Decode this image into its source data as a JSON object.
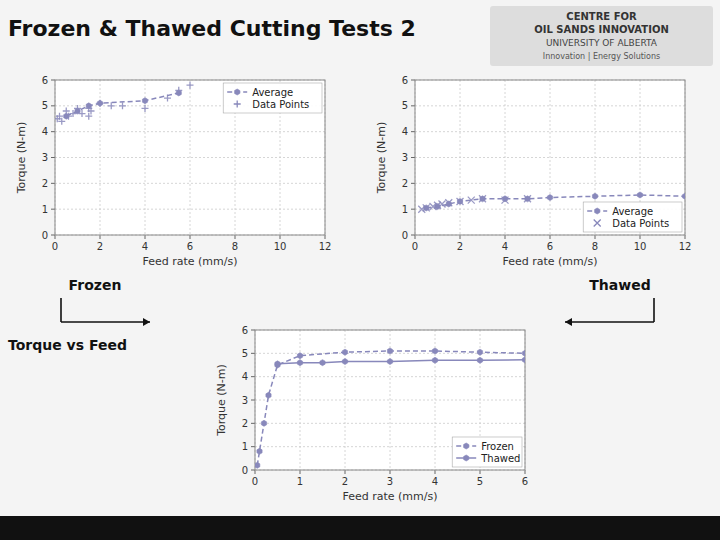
{
  "title": "Frozen & Thawed Cutting Tests 2",
  "annotations": [
    "CENTRE FOR",
    "OIL SANDS INNOVATION",
    "UNIVERSITY OF ALBERTA",
    "Innovation | Energy Solutions"
  ],
  "chart_data": [
    {
      "type": "line",
      "title": "Frozen",
      "xlabel": "Feed rate (mm/s)",
      "ylabel": "Torque (N-m)",
      "xlim": [
        0,
        12
      ],
      "ylim": [
        0,
        6
      ],
      "xticks": [
        0,
        2,
        4,
        6,
        8,
        10,
        12
      ],
      "yticks": [
        0,
        1,
        2,
        3,
        4,
        5,
        6
      ],
      "grid": true,
      "legend": "upper right",
      "series": [
        {
          "name": "Average",
          "type": "line",
          "color": "#8888bb",
          "line_style": "dashed",
          "marker": "hexagon",
          "x": [
            0.5,
            1.0,
            1.5,
            2.0,
            4.0,
            5.5
          ],
          "values": [
            4.6,
            4.8,
            5.0,
            5.1,
            5.2,
            5.5
          ]
        },
        {
          "name": "Data Points",
          "type": "scatter",
          "color": "#8888bb",
          "marker": "plus",
          "x": [
            0.1,
            0.2,
            0.3,
            0.5,
            0.6,
            0.8,
            1.0,
            1.2,
            1.5,
            1.5,
            1.6,
            2.0,
            2.5,
            3.0,
            4.0,
            5.0,
            5.5,
            6.0
          ],
          "values": [
            4.5,
            4.6,
            4.4,
            4.8,
            4.6,
            4.7,
            4.9,
            4.7,
            4.6,
            4.9,
            4.8,
            5.1,
            5.0,
            5.0,
            4.9,
            5.3,
            5.6,
            5.8
          ]
        }
      ]
    },
    {
      "type": "line",
      "title": "Thawed",
      "xlabel": "Feed rate (mm/s)",
      "ylabel": "Torque (N-m)",
      "xlim": [
        0,
        12
      ],
      "ylim": [
        0,
        6
      ],
      "xticks": [
        0,
        2,
        4,
        6,
        8,
        10,
        12
      ],
      "yticks": [
        0,
        1,
        2,
        3,
        4,
        5,
        6
      ],
      "grid": true,
      "legend": "lower right",
      "series": [
        {
          "name": "Average",
          "type": "line",
          "color": "#8888bb",
          "line_style": "dashed",
          "marker": "hexagon",
          "x": [
            0.5,
            1.0,
            1.5,
            2.0,
            3.0,
            4.0,
            5.0,
            6.0,
            8.0,
            10.0,
            12.0
          ],
          "values": [
            1.05,
            1.1,
            1.2,
            1.3,
            1.4,
            1.4,
            1.4,
            1.45,
            1.5,
            1.55,
            1.5
          ]
        },
        {
          "name": "Data Points",
          "type": "scatter",
          "color": "#8888bb",
          "marker": "x",
          "x": [
            0.3,
            0.5,
            0.8,
            1.0,
            1.2,
            1.5,
            2.0,
            2.5,
            3.0,
            4.0,
            5.0
          ],
          "values": [
            1.0,
            1.05,
            1.1,
            1.15,
            1.2,
            1.25,
            1.3,
            1.35,
            1.4,
            1.35,
            1.4
          ]
        }
      ]
    },
    {
      "type": "line",
      "title": "Torque vs Feed",
      "xlabel": "Feed rate (mm/s)",
      "ylabel": "Torque (N-m)",
      "xlim": [
        0,
        6
      ],
      "ylim": [
        0,
        6
      ],
      "xticks": [
        0,
        1,
        2,
        3,
        4,
        5,
        6
      ],
      "yticks": [
        0,
        1,
        2,
        3,
        4,
        5,
        6
      ],
      "grid": true,
      "legend": "lower right",
      "series": [
        {
          "name": "Frozen",
          "type": "line",
          "color": "#8888bb",
          "line_style": "dashed",
          "marker": "hexagon",
          "x": [
            0.05,
            0.1,
            0.2,
            0.3,
            0.5,
            1.0,
            2.0,
            3.0,
            4.0,
            5.0,
            6.0
          ],
          "values": [
            0.2,
            0.8,
            2.0,
            3.2,
            4.5,
            4.9,
            5.05,
            5.1,
            5.1,
            5.05,
            5.0
          ]
        },
        {
          "name": "Thawed",
          "type": "line",
          "color": "#8888bb",
          "line_style": "solid",
          "marker": "hexagon",
          "x": [
            0.5,
            1.0,
            1.5,
            2.0,
            3.0,
            4.0,
            5.0,
            6.0
          ],
          "values": [
            4.55,
            4.6,
            4.6,
            4.65,
            4.65,
            4.7,
            4.7,
            4.72
          ]
        }
      ]
    }
  ]
}
